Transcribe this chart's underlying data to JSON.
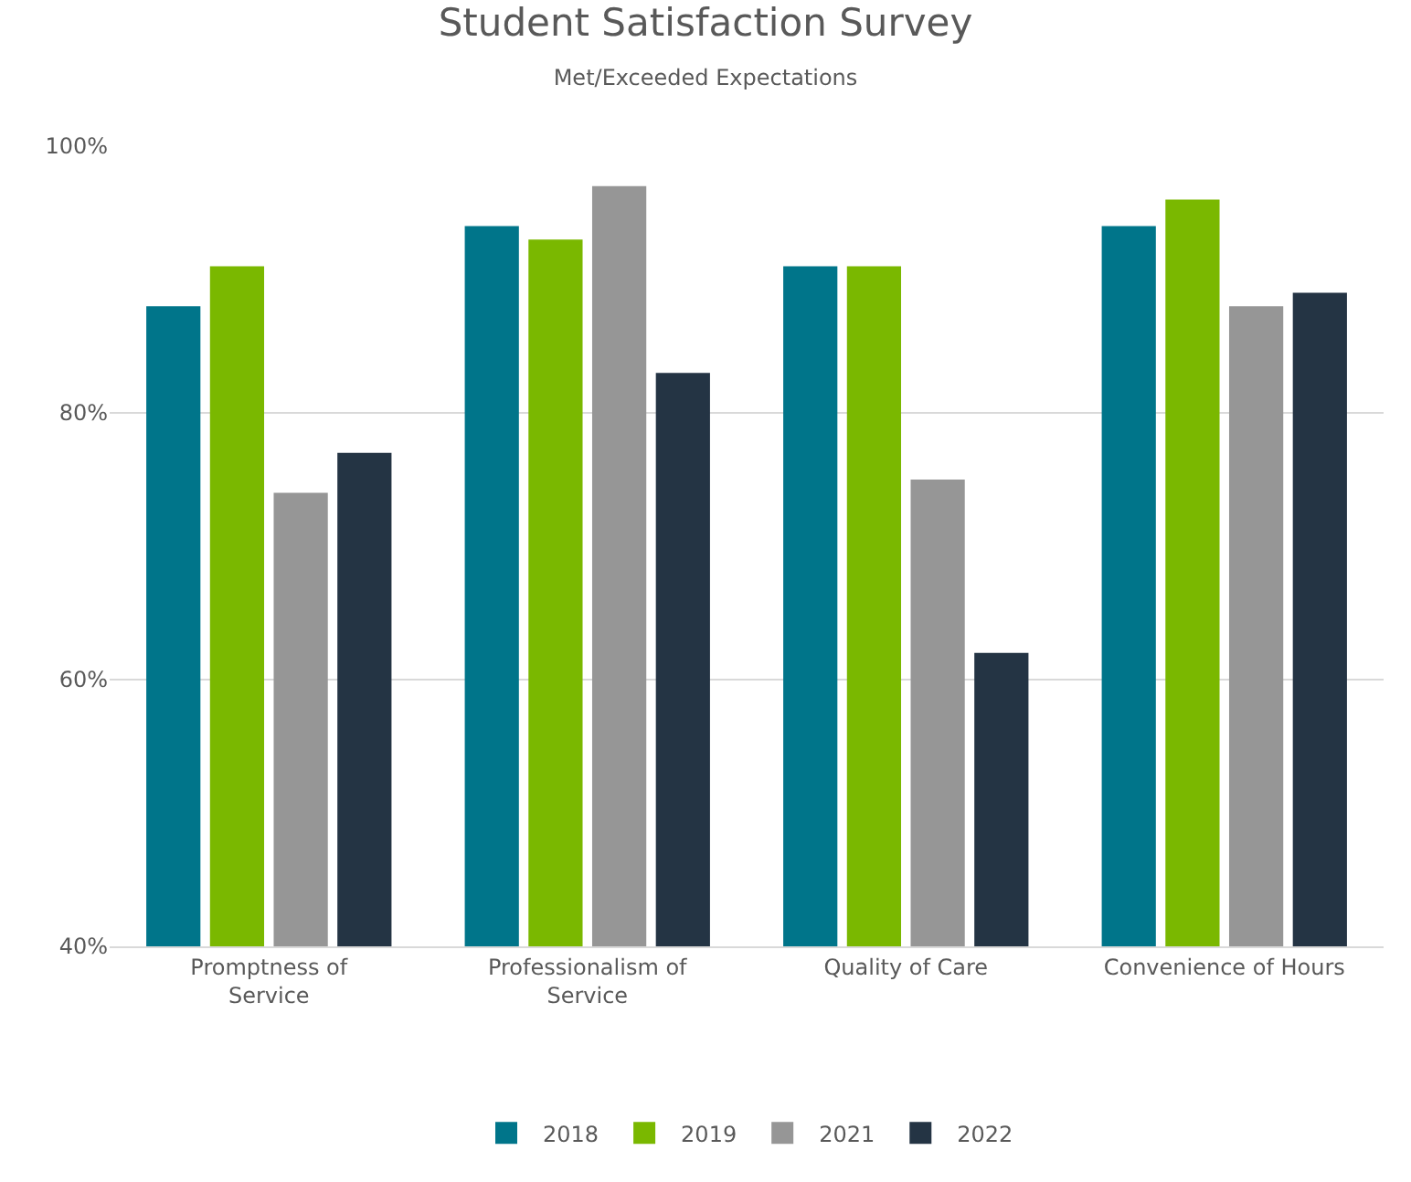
{
  "chart_data": {
    "type": "bar",
    "title": "Student Satisfaction Survey",
    "subtitle": "Met/Exceeded Expectations",
    "categories": [
      "Promptness of Service",
      "Professionalism of Service",
      "Quality of Care",
      "Convenience of Hours"
    ],
    "series": [
      {
        "name": "2018",
        "color": "#00758a",
        "values": [
          88,
          94,
          91,
          94
        ]
      },
      {
        "name": "2019",
        "color": "#7ab800",
        "values": [
          91,
          93,
          91,
          96
        ]
      },
      {
        "name": "2021",
        "color": "#969696",
        "values": [
          74,
          97,
          75,
          88
        ]
      },
      {
        "name": "2022",
        "color": "#243444",
        "values": [
          77,
          83,
          62,
          89
        ]
      }
    ],
    "ylim": [
      40,
      100
    ],
    "yticks": [
      {
        "value": 40,
        "label": "40%"
      },
      {
        "value": 60,
        "label": "60%"
      },
      {
        "value": 80,
        "label": "80%"
      },
      {
        "value": 100,
        "label": "100%"
      }
    ],
    "grid": "y",
    "legend": "bottom"
  }
}
